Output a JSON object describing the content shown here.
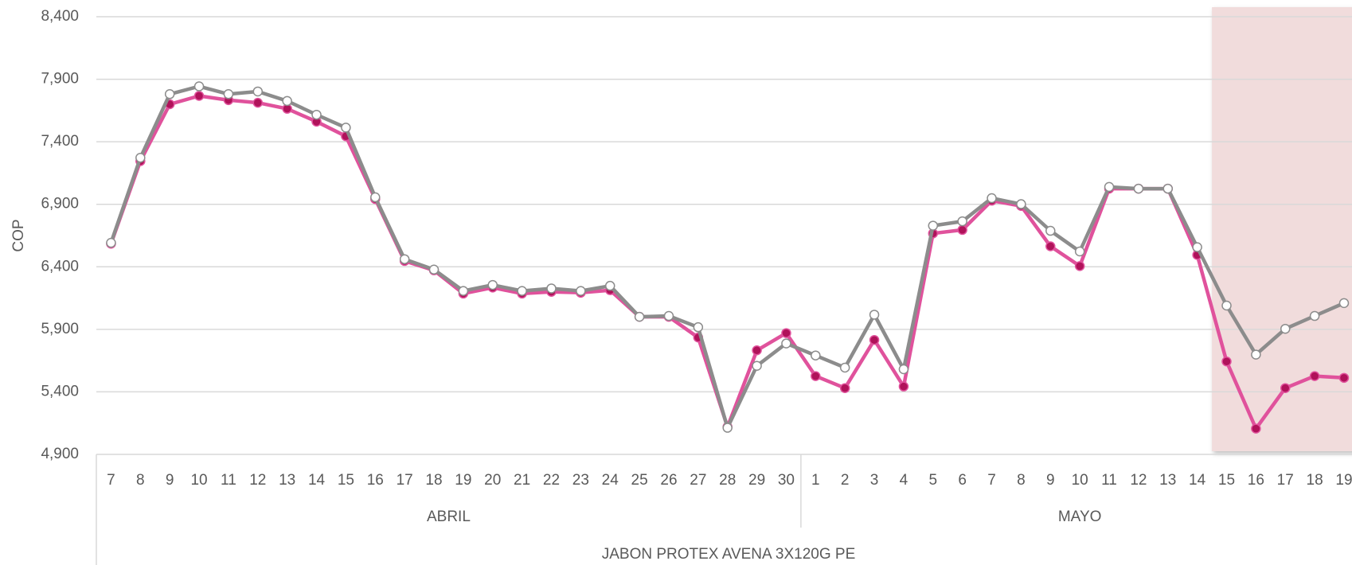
{
  "chart_data": {
    "type": "line",
    "ylabel": "COP",
    "xlabel": "JABON PROTEX AVENA 3X120G PE",
    "groups": [
      {
        "label": "ABRIL",
        "categories": [
          "7",
          "8",
          "9",
          "10",
          "11",
          "12",
          "13",
          "14",
          "15",
          "16",
          "17",
          "18",
          "19",
          "20",
          "21",
          "22",
          "23",
          "24",
          "25",
          "26",
          "27",
          "28",
          "29",
          "30"
        ]
      },
      {
        "label": "MAYO",
        "categories": [
          "1",
          "2",
          "3",
          "4",
          "5",
          "6",
          "7",
          "8",
          "9",
          "10",
          "11",
          "12",
          "13",
          "14",
          "15",
          "16",
          "17",
          "18",
          "19"
        ]
      }
    ],
    "series": [
      {
        "color": "#e0529c",
        "marker_color": "#b0125a",
        "values": [
          6585,
          7245,
          7700,
          7767,
          7733,
          7712,
          7664,
          7561,
          7444,
          6942,
          6447,
          6372,
          6186,
          6234,
          6186,
          6200,
          6193,
          6213,
          6000,
          6000,
          5835,
          5120,
          5732,
          5870,
          5526,
          5430,
          5815,
          5443,
          6667,
          6695,
          6929,
          6887,
          6564,
          6406,
          7025,
          7025,
          7025,
          6495,
          5643,
          5106,
          5430,
          5526,
          5512
        ]
      },
      {
        "color": "#8c8c8c",
        "marker_color": "#ffffff",
        "values": [
          6592,
          7272,
          7781,
          7843,
          7781,
          7802,
          7726,
          7616,
          7513,
          6956,
          6461,
          6378,
          6207,
          6255,
          6207,
          6227,
          6207,
          6248,
          6000,
          6007,
          5917,
          5113,
          5608,
          5787,
          5691,
          5594,
          6017,
          5581,
          6729,
          6764,
          6949,
          6901,
          6688,
          6523,
          7039,
          7025,
          7025,
          6557,
          6090,
          5698,
          5904,
          6007,
          6110
        ]
      }
    ],
    "ylim": [
      4900,
      8400
    ],
    "yticks": [
      {
        "value": 4900,
        "label": "4,900"
      },
      {
        "value": 5400,
        "label": "5,400"
      },
      {
        "value": 5900,
        "label": "5,900"
      },
      {
        "value": 6400,
        "label": "6,400"
      },
      {
        "value": 6900,
        "label": "6,900"
      },
      {
        "value": 7400,
        "label": "7,400"
      },
      {
        "value": 7900,
        "label": "7,900"
      },
      {
        "value": 8400,
        "label": "8,400"
      }
    ],
    "grid": true
  }
}
